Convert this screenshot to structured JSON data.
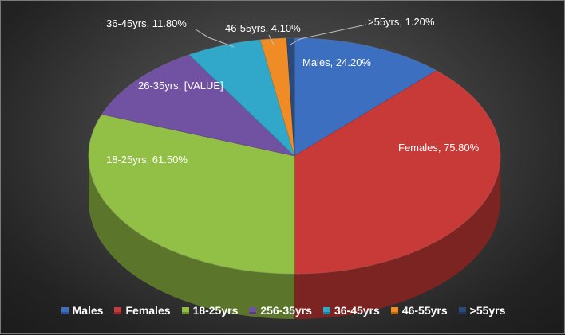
{
  "chart_data": {
    "type": "pie",
    "style": "3d",
    "legend_position": "bottom",
    "slices": [
      {
        "name": "Males",
        "legend": "Males",
        "value": 24.2,
        "label": "Males, 24.20%",
        "color": "#3c6fc0"
      },
      {
        "name": "Females",
        "legend": "Females",
        "value": 75.8,
        "label": "Females, 75.80%",
        "color": "#c83a37"
      },
      {
        "name": "18-25yrs",
        "legend": "18-25yrs",
        "value": 61.5,
        "label": "18-25yrs, 61.50%",
        "color": "#92bf45"
      },
      {
        "name": "26-35yrs",
        "legend": "256-35yrs",
        "value": 21.4,
        "label": "26-35yrs; [VALUE]",
        "color": "#7152a2"
      },
      {
        "name": "36-45yrs",
        "legend": "36-45yrs",
        "value": 11.8,
        "label": "36-45yrs, 11.80%",
        "color": "#31a8c9"
      },
      {
        "name": "46-55yrs",
        "legend": "46-55yrs",
        "value": 4.1,
        "label": "46-55yrs, 4.10%",
        "color": "#ef8c26"
      },
      {
        "name": ">55yrs",
        "legend": ">55yrs",
        "value": 1.2,
        "label": ">55yrs, 1.20%",
        "color": "#2b4a7a"
      }
    ]
  }
}
